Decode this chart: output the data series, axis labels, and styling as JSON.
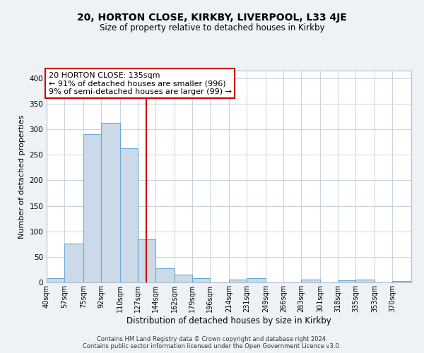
{
  "title": "20, HORTON CLOSE, KIRKBY, LIVERPOOL, L33 4JE",
  "subtitle": "Size of property relative to detached houses in Kirkby",
  "xlabel": "Distribution of detached houses by size in Kirkby",
  "ylabel": "Number of detached properties",
  "bin_edges": [
    40,
    57,
    75,
    92,
    110,
    127,
    144,
    162,
    179,
    196,
    214,
    231,
    249,
    266,
    283,
    301,
    318,
    335,
    353,
    370,
    388
  ],
  "bin_heights": [
    8,
    76,
    290,
    312,
    263,
    85,
    27,
    15,
    8,
    0,
    5,
    8,
    0,
    0,
    5,
    0,
    4,
    5,
    0,
    3
  ],
  "bar_color": "#ccd9e8",
  "bar_edge_color": "#6aaad4",
  "vline_x": 135,
  "vline_color": "#cc0000",
  "annotation_line1": "20 HORTON CLOSE: 135sqm",
  "annotation_line2": "← 91% of detached houses are smaller (996)",
  "annotation_line3": "9% of semi-detached houses are larger (99) →",
  "annotation_box_color": "#cc0000",
  "ylim": [
    0,
    415
  ],
  "yticks": [
    0,
    50,
    100,
    150,
    200,
    250,
    300,
    350,
    400
  ],
  "footer_line1": "Contains HM Land Registry data © Crown copyright and database right 2024.",
  "footer_line2": "Contains public sector information licensed under the Open Government Licence v3.0.",
  "bg_color": "#eef2f7",
  "plot_bg_color": "#ffffff",
  "grid_color": "#c8d4e0",
  "title_fontsize": 10,
  "subtitle_fontsize": 8.5,
  "xlabel_fontsize": 8.5,
  "ylabel_fontsize": 8,
  "tick_fontsize": 7,
  "annot_fontsize": 8,
  "footer_fontsize": 6
}
